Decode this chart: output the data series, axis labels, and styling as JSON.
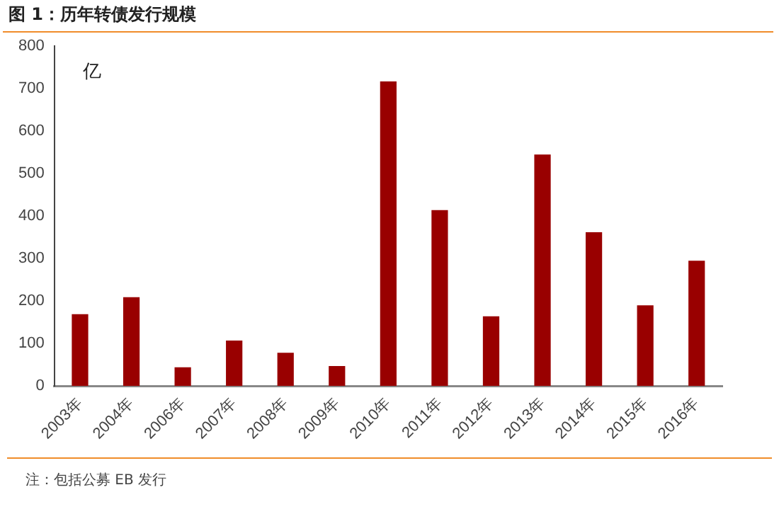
{
  "chart_data": {
    "type": "bar",
    "title": "图 1：历年转债发行规模",
    "categories": [
      "2003年",
      "2004年",
      "2006年",
      "2007年",
      "2008年",
      "2009年",
      "2010年",
      "2011年",
      "2012年",
      "2013年",
      "2014年",
      "2015年",
      "2016年"
    ],
    "values": [
      169,
      209,
      44,
      107,
      78,
      47,
      717,
      414,
      164,
      545,
      362,
      190,
      295
    ],
    "color": "#990000",
    "ylim": [
      0,
      800
    ],
    "yticks": [
      0,
      100,
      200,
      300,
      400,
      500,
      600,
      700,
      800
    ],
    "grid": false,
    "legend": false,
    "annotations": [
      "亿",
      "注：包括公募 EB 发行"
    ]
  }
}
